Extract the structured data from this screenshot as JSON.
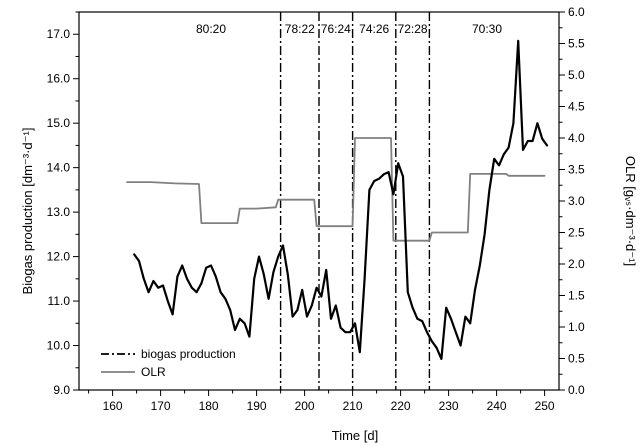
{
  "chart_data": {
    "type": "line",
    "xlabel": "Time [d]",
    "ylabel_left": "Biogas production [dm⁻³·d⁻¹]",
    "ylabel_right": "OLR [gᵥₛ·dm⁻³·d⁻¹]",
    "xlim": [
      153,
      253
    ],
    "ylim_left": [
      9.0,
      17.5
    ],
    "ylim_right": [
      0.0,
      6.0
    ],
    "x_ticks": [
      160,
      170,
      180,
      190,
      200,
      210,
      220,
      230,
      240,
      250
    ],
    "y_left_ticks": [
      "9.0",
      "10.0",
      "11.0",
      "12.0",
      "13.0",
      "14.0",
      "15.0",
      "16.0",
      "17.0"
    ],
    "y_right_ticks": [
      "0.0",
      "0.5",
      "1.0",
      "1.5",
      "2.0",
      "2.5",
      "3.0",
      "3.5",
      "4.0",
      "4.5",
      "5.0",
      "5.5",
      "6.0"
    ],
    "phase_boundaries": [
      195,
      203,
      210,
      219,
      226
    ],
    "phases": [
      {
        "label": "80:20",
        "x": 180.5
      },
      {
        "label": "78:22",
        "x": 199
      },
      {
        "label": "76:24",
        "x": 206.5
      },
      {
        "label": "74:26",
        "x": 214.5
      },
      {
        "label": "72:28",
        "x": 222.5
      },
      {
        "label": "70:30",
        "x": 238
      }
    ],
    "legend": {
      "placement": "bottom-left",
      "items": [
        {
          "label": "biogas production",
          "color": "#000000",
          "style": "dash-dot"
        },
        {
          "label": "OLR",
          "color": "#808080",
          "style": "solid"
        }
      ]
    },
    "series": [
      {
        "name": "biogas production",
        "axis": "left",
        "color": "#000000",
        "x": [
          164.5,
          165.5,
          166.5,
          167.5,
          168.5,
          169.5,
          170.5,
          171.5,
          172.5,
          173.5,
          174.5,
          175.5,
          176.5,
          177.5,
          178.5,
          179.5,
          180.5,
          181.5,
          182.5,
          183.5,
          184.5,
          185.5,
          186.5,
          187.5,
          188.5,
          189.5,
          190.5,
          191.5,
          192.5,
          193.5,
          194.5,
          195.5,
          196.5,
          197.5,
          198.5,
          199.5,
          200.5,
          201.5,
          202.5,
          203.5,
          204.5,
          205.5,
          206.5,
          207.5,
          208.5,
          209.5,
          210.5,
          211.5,
          212.5,
          213.5,
          214.5,
          215.5,
          216.5,
          217.5,
          218.5,
          219.5,
          220.5,
          221.5,
          222.5,
          223.5,
          224.5,
          225.5,
          226.5,
          227.5,
          228.5,
          229.5,
          230.5,
          231.5,
          232.5,
          233.5,
          234.5,
          235.5,
          236.5,
          237.5,
          238.5,
          239.5,
          240.5,
          241.5,
          242.5,
          243.5,
          244.5,
          245.5,
          246.5,
          247.5,
          248.5,
          249.5,
          250.5
        ],
        "y": [
          12.05,
          11.9,
          11.5,
          11.2,
          11.45,
          11.3,
          11.35,
          11.0,
          10.7,
          11.55,
          11.8,
          11.5,
          11.3,
          11.2,
          11.4,
          11.75,
          11.8,
          11.55,
          11.2,
          11.05,
          10.8,
          10.35,
          10.6,
          10.5,
          10.2,
          11.5,
          12.0,
          11.6,
          11.05,
          11.65,
          12.0,
          12.25,
          11.6,
          10.65,
          10.8,
          11.25,
          10.65,
          10.9,
          11.3,
          11.1,
          11.7,
          10.6,
          10.9,
          10.4,
          10.3,
          10.3,
          10.5,
          9.85,
          11.5,
          13.5,
          13.7,
          13.75,
          13.85,
          13.9,
          13.4,
          14.1,
          13.8,
          11.2,
          10.85,
          10.6,
          10.55,
          10.3,
          10.1,
          9.95,
          9.7,
          10.85,
          10.6,
          10.3,
          10.0,
          10.65,
          10.5,
          11.25,
          11.8,
          12.5,
          13.5,
          14.2,
          14.05,
          14.3,
          14.45,
          15.0,
          16.85,
          14.4,
          14.6,
          14.6,
          15.0,
          14.65,
          14.5
        ]
      },
      {
        "name": "OLR",
        "axis": "right",
        "color": "#808080",
        "x": [
          163,
          168,
          173,
          178,
          178.5,
          182,
          186,
          186.5,
          190,
          194,
          194.5,
          198,
          202,
          202.5,
          206,
          210,
          210.5,
          214,
          218,
          218.5,
          222,
          226,
          226.5,
          230,
          234,
          234.5,
          238,
          242,
          242.5,
          246,
          250
        ],
        "y": [
          3.3,
          3.3,
          3.28,
          3.27,
          2.65,
          2.65,
          2.65,
          2.88,
          2.88,
          2.9,
          3.02,
          3.02,
          3.02,
          2.6,
          2.6,
          2.6,
          4.0,
          4.0,
          4.0,
          2.37,
          2.37,
          2.37,
          2.5,
          2.5,
          2.5,
          3.43,
          3.43,
          3.43,
          3.4,
          3.4,
          3.4
        ]
      }
    ]
  }
}
